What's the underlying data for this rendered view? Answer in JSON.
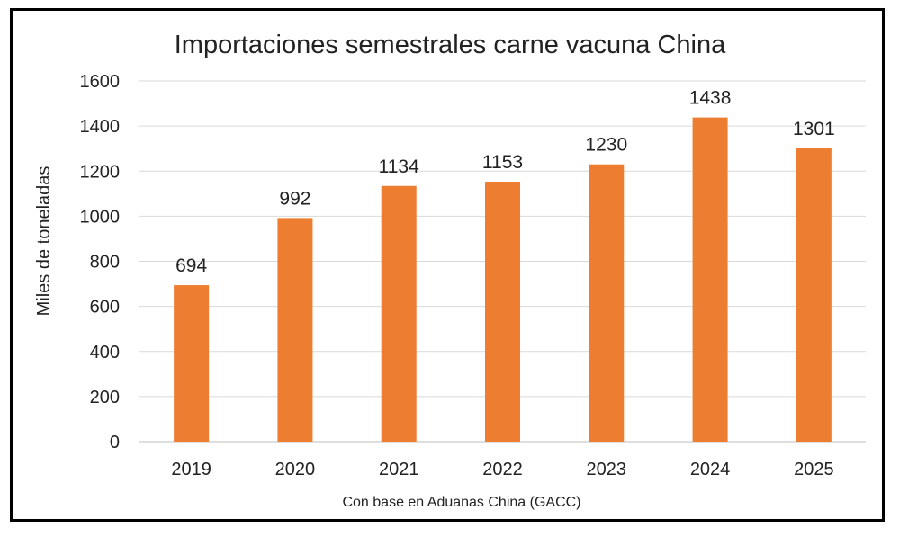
{
  "chart_data": {
    "type": "bar",
    "title": "Importaciones semestrales carne vacuna China",
    "xlabel": "Con base en Aduanas China (GACC)",
    "ylabel": "Miles de toneladas",
    "categories": [
      "2019",
      "2020",
      "2021",
      "2022",
      "2023",
      "2024",
      "2025"
    ],
    "values": [
      694,
      992,
      1134,
      1153,
      1230,
      1438,
      1301
    ],
    "data_labels": [
      "694",
      "992",
      "1134",
      "1153",
      "1230",
      "1438",
      "1301"
    ],
    "ylim": [
      0,
      1600
    ],
    "yticks": [
      "0",
      "200",
      "400",
      "600",
      "800",
      "1000",
      "1200",
      "1400",
      "1600"
    ],
    "grid": true,
    "bar_color": "#ED7D31"
  }
}
